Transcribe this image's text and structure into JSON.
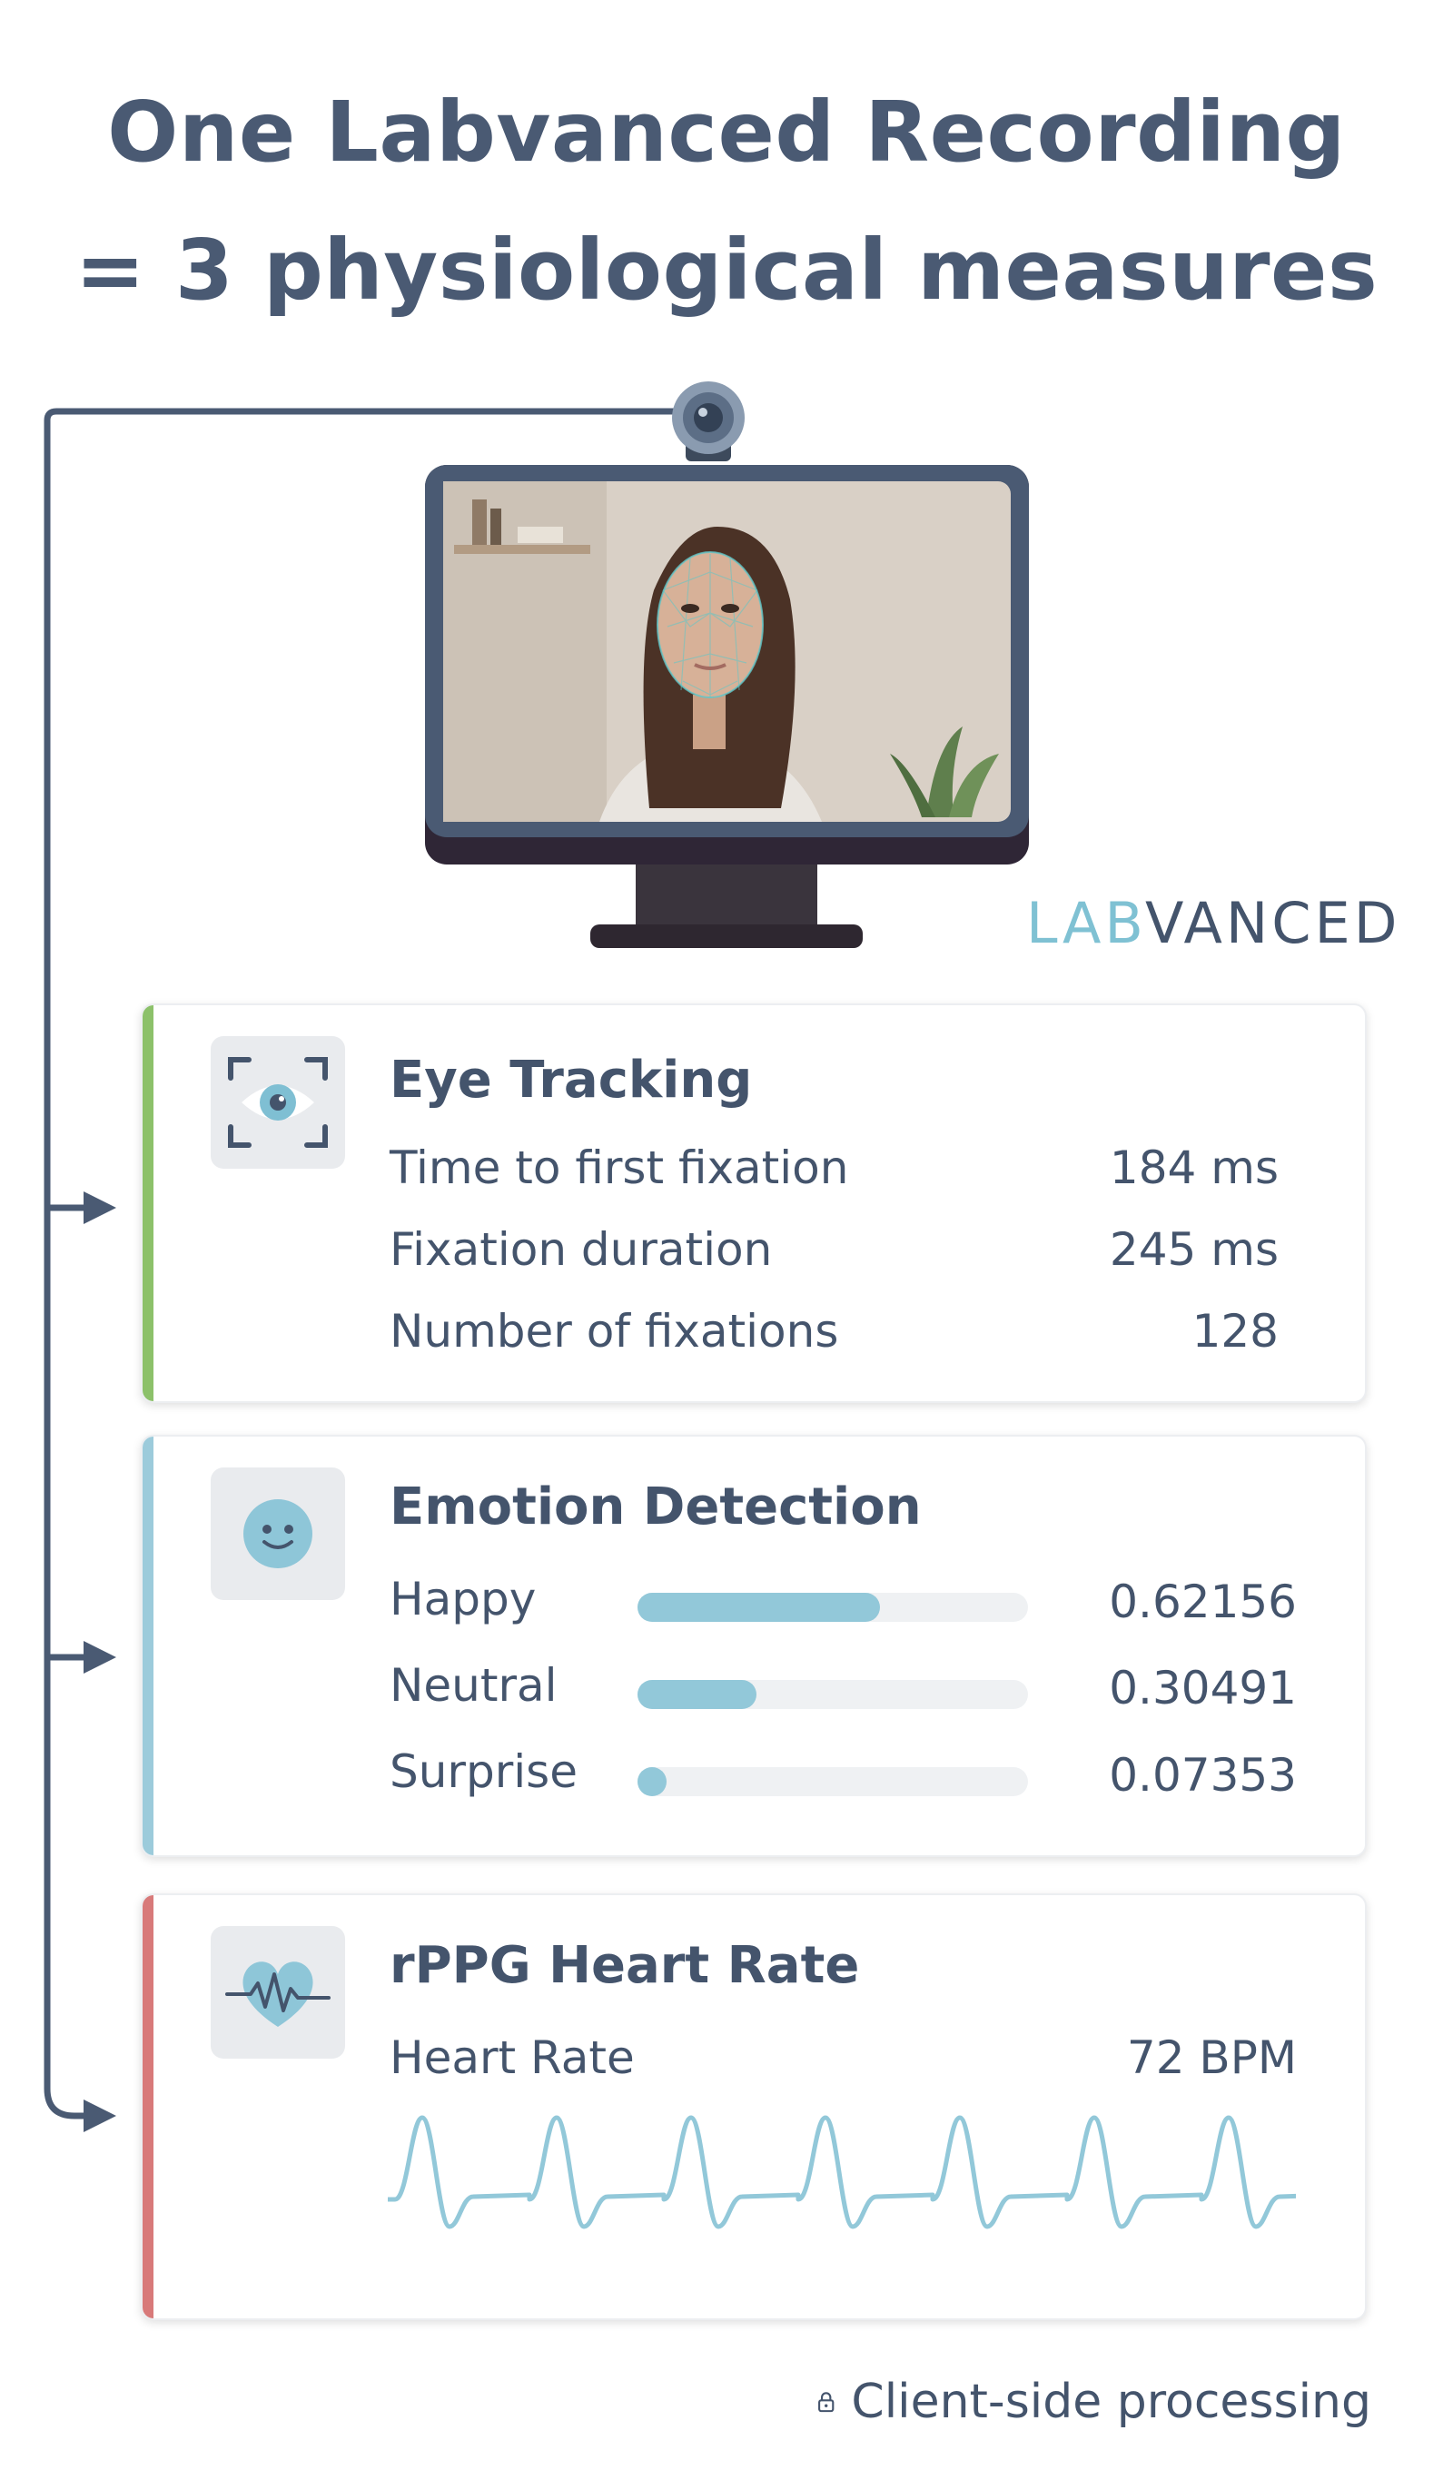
{
  "title": {
    "line1": "One Labvanced Recording",
    "line2": "= 3 physiological measures"
  },
  "brand": {
    "part1": "LAB",
    "part2": "VANCED",
    "color1": "#7fc1d3",
    "color2": "#44546c"
  },
  "cards": {
    "eye": {
      "title": "Eye Tracking",
      "accent": "#8cc16a",
      "icon": "eye-icon",
      "rows": [
        {
          "label": "Time to first fixation",
          "value": "184 ms"
        },
        {
          "label": "Fixation duration",
          "value": "245 ms"
        },
        {
          "label": "Number of fixations",
          "value": "128"
        }
      ]
    },
    "emotion": {
      "title": "Emotion Detection",
      "accent": "#9ccbdb",
      "icon": "smiley-icon",
      "rows": [
        {
          "label": "Happy",
          "value": "0.62156",
          "level": 0.62156
        },
        {
          "label": "Neutral",
          "value": "0.30491",
          "level": 0.30491
        },
        {
          "label": "Surprise",
          "value": "0.07353",
          "level": 0.07353
        }
      ]
    },
    "heart": {
      "title": "rPPG Heart Rate",
      "accent": "#d87a7a",
      "icon": "heart-pulse-icon",
      "rows": [
        {
          "label": "Heart Rate",
          "value": "72 BPM"
        }
      ]
    }
  },
  "footer": {
    "text": "Client-side processing",
    "icon": "lock-icon"
  }
}
